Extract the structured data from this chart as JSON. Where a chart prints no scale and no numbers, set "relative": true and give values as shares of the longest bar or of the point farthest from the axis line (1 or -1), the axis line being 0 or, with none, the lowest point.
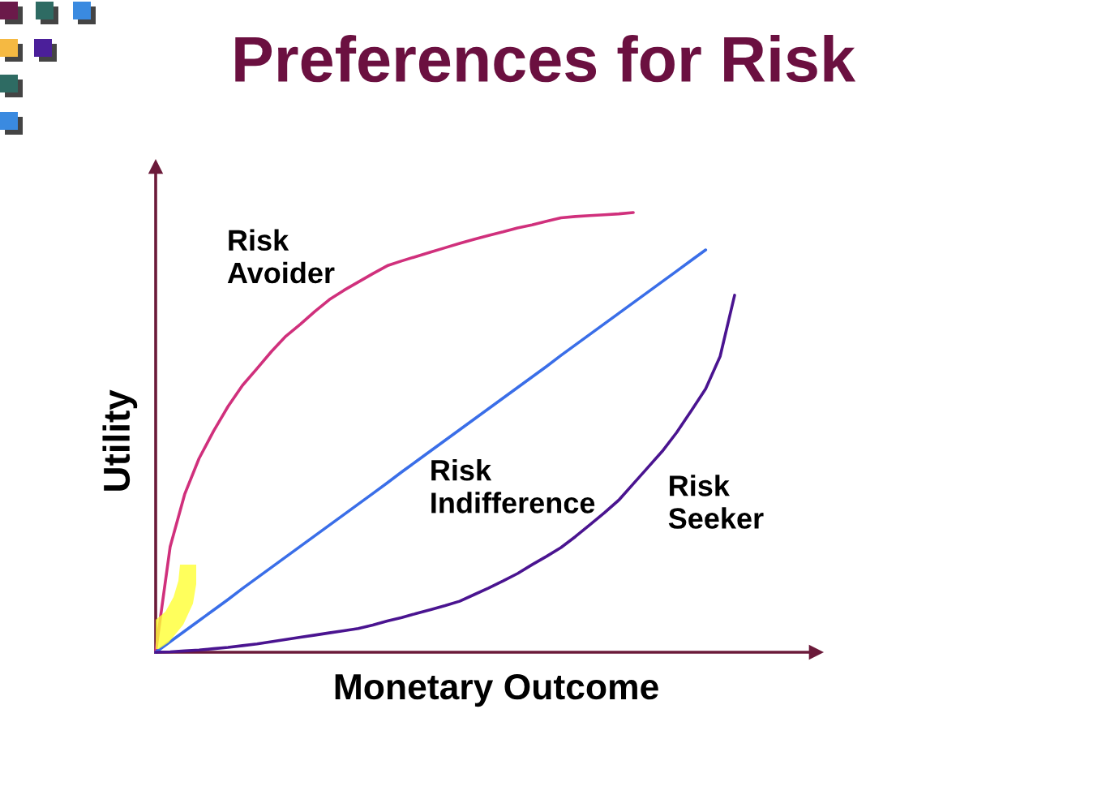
{
  "chart_data": {
    "type": "line",
    "relative": true,
    "title": "Preferences for Risk",
    "xlabel": "Monetary Outcome",
    "ylabel": "Utility",
    "categories": [
      null,
      null,
      null,
      null,
      null,
      null,
      null,
      null,
      null,
      null,
      null,
      null,
      null,
      null,
      null,
      null,
      null,
      null,
      null,
      null,
      null,
      null,
      null,
      null,
      null,
      null,
      null,
      null,
      null,
      null,
      null,
      null,
      null,
      null,
      null,
      null,
      null,
      null,
      null,
      null,
      null
    ],
    "series": [
      {
        "name": "Risk Avoider",
        "color": "#d0307c",
        "values": [
          0,
          0.24,
          0.359,
          0.441,
          0.503,
          0.559,
          0.607,
          0.645,
          0.684,
          0.719,
          0.746,
          0.775,
          0.802,
          0.823,
          0.842,
          0.861,
          0.879,
          0.89,
          0.9,
          0.91,
          0.92,
          0.93,
          0.939,
          0.948,
          0.956,
          0.965,
          0.972,
          0.98,
          0.988,
          0.991,
          0.993,
          0.995,
          0.997,
          1.0,
          null,
          null,
          null,
          null,
          null,
          null,
          null
        ]
      },
      {
        "name": "Risk Indifference",
        "color": "#3a6ee8",
        "values": [
          0,
          0.024,
          0.048,
          0.072,
          0.096,
          0.12,
          0.145,
          0.169,
          0.193,
          0.217,
          0.241,
          0.265,
          0.289,
          0.313,
          0.337,
          0.361,
          0.385,
          0.41,
          0.434,
          0.458,
          0.482,
          0.506,
          0.53,
          0.554,
          0.578,
          0.602,
          0.626,
          0.65,
          0.675,
          0.699,
          0.723,
          0.747,
          0.771,
          0.795,
          0.819,
          0.843,
          0.867,
          0.891,
          0.915,
          null,
          null
        ]
      },
      {
        "name": "Risk Seeker",
        "color": "#4a1490",
        "values": [
          0,
          0.001,
          0.003,
          0.005,
          0.008,
          0.011,
          0.015,
          0.019,
          0.024,
          0.029,
          0.034,
          0.039,
          0.044,
          0.049,
          0.054,
          0.062,
          0.071,
          0.079,
          0.088,
          0.097,
          0.106,
          0.116,
          0.131,
          0.146,
          0.162,
          0.179,
          0.199,
          0.218,
          0.238,
          0.263,
          0.29,
          0.317,
          0.346,
          0.383,
          0.42,
          0.457,
          0.5,
          0.549,
          0.599,
          0.673,
          0.812
        ]
      }
    ]
  }
}
